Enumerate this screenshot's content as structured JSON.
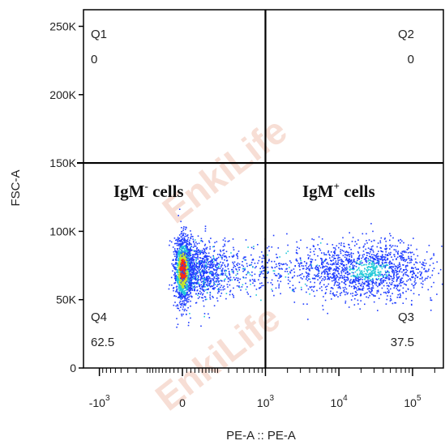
{
  "chart_data": {
    "type": "scatter",
    "xlabel": "PE-A :: PE-A",
    "ylabel": "FSC-A",
    "y_ticks": [
      "0",
      "50K",
      "100K",
      "150K",
      "200K",
      "250K"
    ],
    "y_tick_values": [
      0,
      50000,
      100000,
      150000,
      200000,
      250000
    ],
    "ylim": [
      0,
      262144
    ],
    "x_scale": "biexponential",
    "x_ticks": [
      {
        "base": "-10",
        "exp": "3",
        "value": -1000
      },
      {
        "base": "0",
        "exp": "",
        "value": 0
      },
      {
        "base": "10",
        "exp": "3",
        "value": 1000
      },
      {
        "base": "10",
        "exp": "4",
        "value": 10000
      },
      {
        "base": "10",
        "exp": "5",
        "value": 100000
      }
    ],
    "gate": {
      "x_split": 1000,
      "y_split": 150000
    },
    "quadrants": [
      {
        "name": "Q1",
        "value": "0"
      },
      {
        "name": "Q2",
        "value": "0"
      },
      {
        "name": "Q3",
        "value": "37.5"
      },
      {
        "name": "Q4",
        "value": "62.5"
      }
    ],
    "annotations": [
      {
        "main": "IgM",
        "sup": "-",
        "rest": " cells"
      },
      {
        "main": "IgM",
        "sup": "+",
        "rest": " cells"
      }
    ],
    "populations": [
      {
        "label": "IgM- cluster",
        "x_center": 0,
        "y_center": 72000,
        "fraction": 0.625
      },
      {
        "label": "IgM+ cluster",
        "x_center": 25000,
        "y_center": 72000,
        "fraction": 0.375
      }
    ],
    "watermark": "EnkiLife",
    "colors": {
      "low": "#1f3cff",
      "mid": "#22c9d8",
      "high_mid": "#c8e82a",
      "peak": "#ff2a10",
      "gate": "#000000"
    }
  }
}
